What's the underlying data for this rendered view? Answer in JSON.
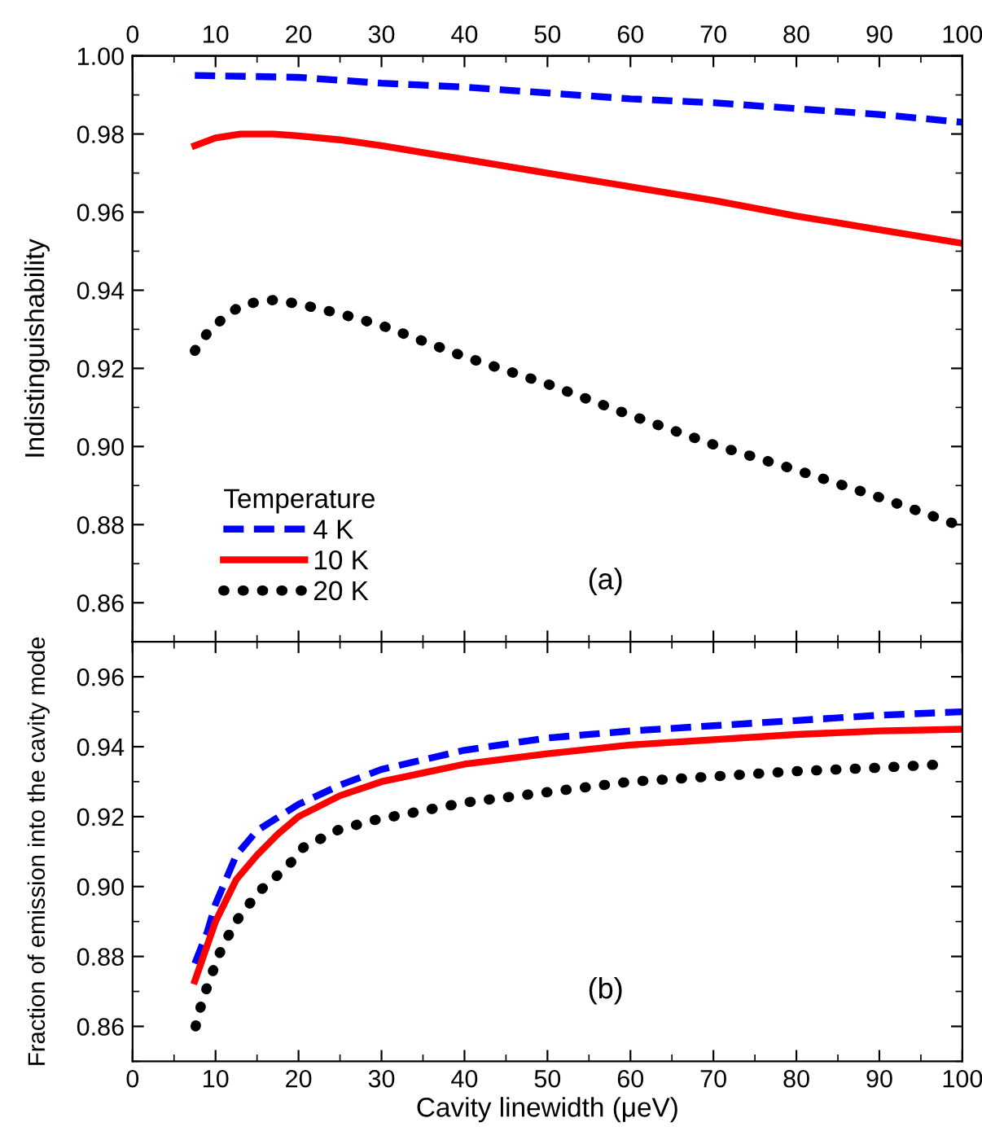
{
  "chart_data": [
    {
      "type": "line",
      "ylabel": "Indistinguishability",
      "legend_title": "Temperature",
      "legend": "bottom left",
      "annotations": [
        "(a)"
      ],
      "grid": false,
      "tick_labels": "y",
      "xlim": [
        0,
        100
      ],
      "xticks": [
        0,
        10,
        20,
        30,
        40,
        50,
        60,
        70,
        80,
        90,
        100
      ],
      "x2lim": [
        0,
        100
      ],
      "x2ticks": [
        0,
        10,
        20,
        30,
        40,
        50,
        60,
        70,
        80,
        90,
        100
      ],
      "ylim": [
        0.85,
        1.0
      ],
      "yticks": [
        {
          "value": 0.86,
          "label": "0.86"
        },
        {
          "value": 0.88,
          "label": "0.88"
        },
        {
          "value": 0.9,
          "label": "0.90"
        },
        {
          "value": 0.92,
          "label": "0.92"
        },
        {
          "value": 0.94,
          "label": "0.94"
        },
        {
          "value": 0.96,
          "label": "0.96"
        },
        {
          "value": 0.98,
          "label": "0.98"
        },
        {
          "value": 1.0,
          "label": "1.00"
        }
      ],
      "series": [
        {
          "name": "4 K",
          "color": "#0000ff",
          "line_style": "dashed",
          "x": [
            7.5,
            20,
            30,
            40,
            50,
            60,
            70,
            80,
            90,
            100
          ],
          "values": [
            0.995,
            0.9945,
            0.993,
            0.992,
            0.9905,
            0.989,
            0.988,
            0.9865,
            0.985,
            0.983
          ]
        },
        {
          "name": "10 K",
          "color": "#ff0000",
          "line_style": "solid",
          "x": [
            7.5,
            10,
            13,
            17,
            20,
            25,
            30,
            40,
            50,
            60,
            70,
            80,
            90,
            100
          ],
          "values": [
            0.977,
            0.979,
            0.98,
            0.98,
            0.9795,
            0.9785,
            0.977,
            0.9735,
            0.97,
            0.9665,
            0.963,
            0.959,
            0.9555,
            0.952
          ]
        },
        {
          "name": "20 K",
          "color": "#000000",
          "line_style": "dotted",
          "x": [
            7.5,
            9,
            11,
            13,
            15,
            17,
            20,
            25,
            30,
            35,
            40,
            50,
            60,
            70,
            80,
            90,
            100
          ],
          "values": [
            0.9245,
            0.929,
            0.933,
            0.936,
            0.937,
            0.9375,
            0.9365,
            0.934,
            0.931,
            0.927,
            0.923,
            0.916,
            0.908,
            0.9005,
            0.894,
            0.887,
            0.8795
          ]
        }
      ]
    },
    {
      "type": "line",
      "xlabel": "Cavity linewidth (μeV)",
      "ylabel": "Fraction of emission into the cavity mode",
      "annotations": [
        "(b)"
      ],
      "grid": false,
      "xlim": [
        0,
        100
      ],
      "xticks": [
        0,
        10,
        20,
        30,
        40,
        50,
        60,
        70,
        80,
        90,
        100
      ],
      "ylim": [
        0.85,
        0.97
      ],
      "yticks": [
        {
          "value": 0.86,
          "label": "0.86"
        },
        {
          "value": 0.88,
          "label": "0.88"
        },
        {
          "value": 0.9,
          "label": "0.90"
        },
        {
          "value": 0.92,
          "label": "0.92"
        },
        {
          "value": 0.94,
          "label": "0.94"
        },
        {
          "value": 0.96,
          "label": "0.96"
        }
      ],
      "series": [
        {
          "color": "#0000ff",
          "line_style": "dashed",
          "x": [
            7.5,
            9,
            10,
            12.5,
            15,
            20,
            25,
            30,
            40,
            50,
            60,
            70,
            80,
            90,
            100
          ],
          "values": [
            0.878,
            0.887,
            0.895,
            0.909,
            0.916,
            0.9235,
            0.929,
            0.9335,
            0.939,
            0.9425,
            0.9445,
            0.946,
            0.9475,
            0.949,
            0.95
          ]
        },
        {
          "color": "#ff0000",
          "line_style": "solid",
          "x": [
            7.5,
            10,
            12.5,
            15,
            17.5,
            20,
            25,
            30,
            40,
            50,
            60,
            70,
            80,
            90,
            100
          ],
          "values": [
            0.873,
            0.89,
            0.902,
            0.909,
            0.915,
            0.92,
            0.926,
            0.93,
            0.935,
            0.938,
            0.9405,
            0.942,
            0.9435,
            0.9445,
            0.945
          ]
        },
        {
          "color": "#000000",
          "line_style": "dotted",
          "x": [
            7.6,
            8.2,
            8.9,
            10.4,
            12.3,
            15.2,
            18.7,
            20.6,
            24.8,
            28.9,
            40,
            50,
            60,
            70,
            80,
            90,
            98
          ],
          "values": [
            0.86,
            0.8655,
            0.8707,
            0.8805,
            0.8895,
            0.8985,
            0.9058,
            0.9112,
            0.9162,
            0.9189,
            0.924,
            0.927,
            0.93,
            0.9315,
            0.933,
            0.934,
            0.935
          ]
        }
      ]
    }
  ]
}
